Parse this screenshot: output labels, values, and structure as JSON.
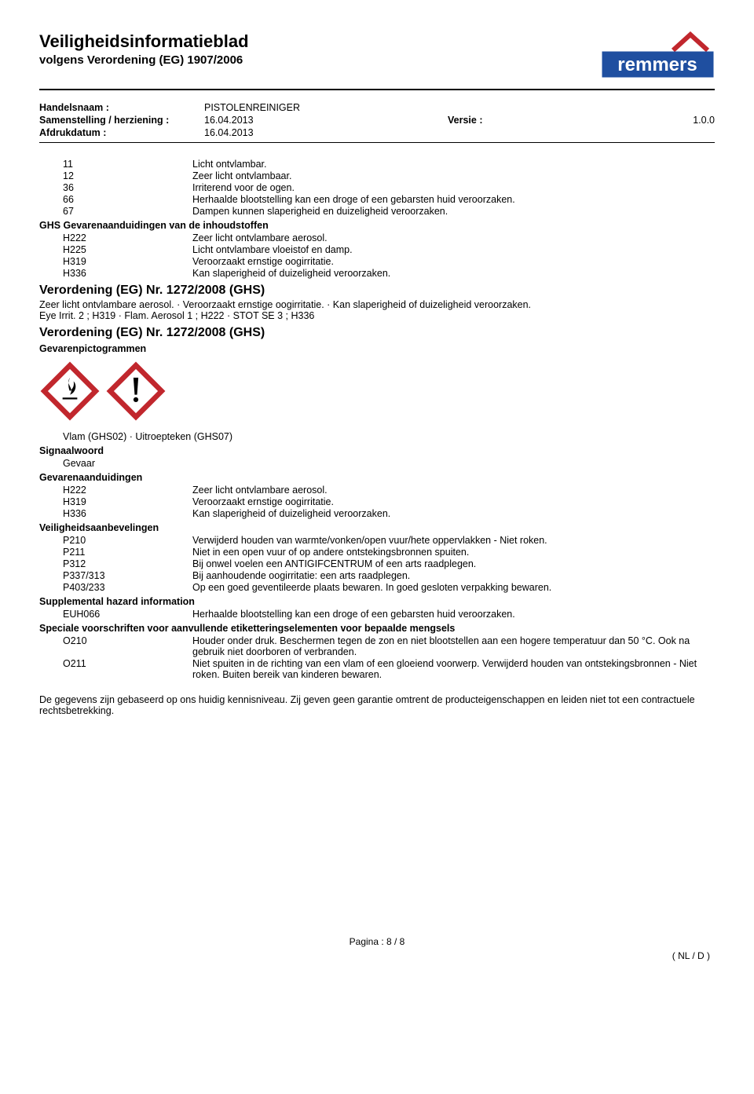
{
  "header": {
    "title": "Veiligheidsinformatieblad",
    "subtitle": "volgens Verordening (EG) 1907/2006",
    "logo_text": "remmers",
    "logo_bg": "#1f4fa0",
    "logo_roof": "#c1272d",
    "logo_text_color": "#ffffff"
  },
  "meta": {
    "handelsnaam_label": "Handelsnaam :",
    "handelsnaam": "PISTOLENREINIGER",
    "samenstelling_label": "Samenstelling / herziening :",
    "samenstelling": "16.04.2013",
    "versie_label": "Versie :",
    "versie": "1.0.0",
    "afdruk_label": "Afdrukdatum :",
    "afdruk": "16.04.2013"
  },
  "r_phrases": [
    {
      "code": "11",
      "text": "Licht ontvlambar."
    },
    {
      "code": "12",
      "text": "Zeer licht ontvlambaar."
    },
    {
      "code": "36",
      "text": "Irriterend voor de ogen."
    },
    {
      "code": "66",
      "text": "Herhaalde blootstelling kan een droge of een gebarsten huid veroorzaken."
    },
    {
      "code": "67",
      "text": "Dampen kunnen slaperigheid en duizeligheid veroorzaken."
    }
  ],
  "ghs_ingredients_title": "GHS Gevarenaanduidingen van de inhoudstoffen",
  "ghs_ingredients": [
    {
      "code": "H222",
      "text": "Zeer licht ontvlambare aerosol."
    },
    {
      "code": "H225",
      "text": "Licht ontvlambare vloeistof en damp."
    },
    {
      "code": "H319",
      "text": "Veroorzaakt ernstige oogirritatie."
    },
    {
      "code": "H336",
      "text": "Kan slaperigheid of duizeligheid veroorzaken."
    }
  ],
  "reg1_title": "Verordening (EG) Nr. 1272/2008 (GHS)",
  "reg1_line1": "Zeer licht ontvlambare aerosol. · Veroorzaakt ernstige oogirritatie. · Kan slaperigheid of duizeligheid veroorzaken.",
  "reg1_line2": "Eye Irrit. 2 ; H319  ·  Flam. Aerosol 1 ; H222  ·  STOT SE 3 ; H336",
  "reg2_title": "Verordening (EG) Nr. 1272/2008 (GHS)",
  "pictograms_label": "Gevarenpictogrammen",
  "pictograms": {
    "border_color": "#c1272d",
    "fill": "#ffffff",
    "icon_color": "#000000",
    "size": 78
  },
  "pictogram_line": "Vlam (GHS02) · Uitroepteken (GHS07)",
  "signal_label": "Signaalwoord",
  "signal_word": "Gevaar",
  "h_title": "Gevarenaanduidingen",
  "h_statements": [
    {
      "code": "H222",
      "text": "Zeer licht ontvlambare aerosol."
    },
    {
      "code": "H319",
      "text": "Veroorzaakt ernstige oogirritatie."
    },
    {
      "code": "H336",
      "text": "Kan slaperigheid of duizeligheid veroorzaken."
    }
  ],
  "p_title": "Veiligheidsaanbevelingen",
  "p_statements": [
    {
      "code": "P210",
      "text": "Verwijderd houden van warmte/vonken/open vuur/hete oppervlakken - Niet roken."
    },
    {
      "code": "P211",
      "text": "Niet in een open vuur of op andere ontstekingsbronnen spuiten."
    },
    {
      "code": "P312",
      "text": "Bij onwel voelen een ANTIGIFCENTRUM of een arts raadplegen."
    },
    {
      "code": "P337/313",
      "text": "Bij aanhoudende oogirritatie: een arts raadplegen."
    },
    {
      "code": "P403/233",
      "text": "Op een goed geventileerde plaats bewaren. In goed gesloten verpakking bewaren."
    }
  ],
  "supp_title": "Supplemental hazard information",
  "supp": [
    {
      "code": "EUH066",
      "text": "Herhaalde blootstelling kan een droge of een gebarsten huid veroorzaken."
    }
  ],
  "special_title": "Speciale voorschriften voor aanvullende etiketteringselementen voor bepaalde mengsels",
  "special": [
    {
      "code": "O210",
      "text": "Houder onder druk. Beschermen tegen de zon en niet blootstellen aan een hogere temperatuur dan 50 °C. Ook na gebruik niet doorboren of verbranden."
    },
    {
      "code": "O211",
      "text": "Niet spuiten in de richting van een vlam of een gloeiend voorwerp. Verwijderd houden van ontstekingsbronnen - Niet roken. Buiten bereik van kinderen bewaren."
    }
  ],
  "disclaimer": "De gegevens zijn gebaseerd op ons huidig kennisniveau. Zij geven geen garantie omtrent de producteigenschappen en leiden niet tot een contractuele rechtsbetrekking.",
  "footer": {
    "page": "Pagina : 8 / 8",
    "locale": "( NL / D )"
  }
}
